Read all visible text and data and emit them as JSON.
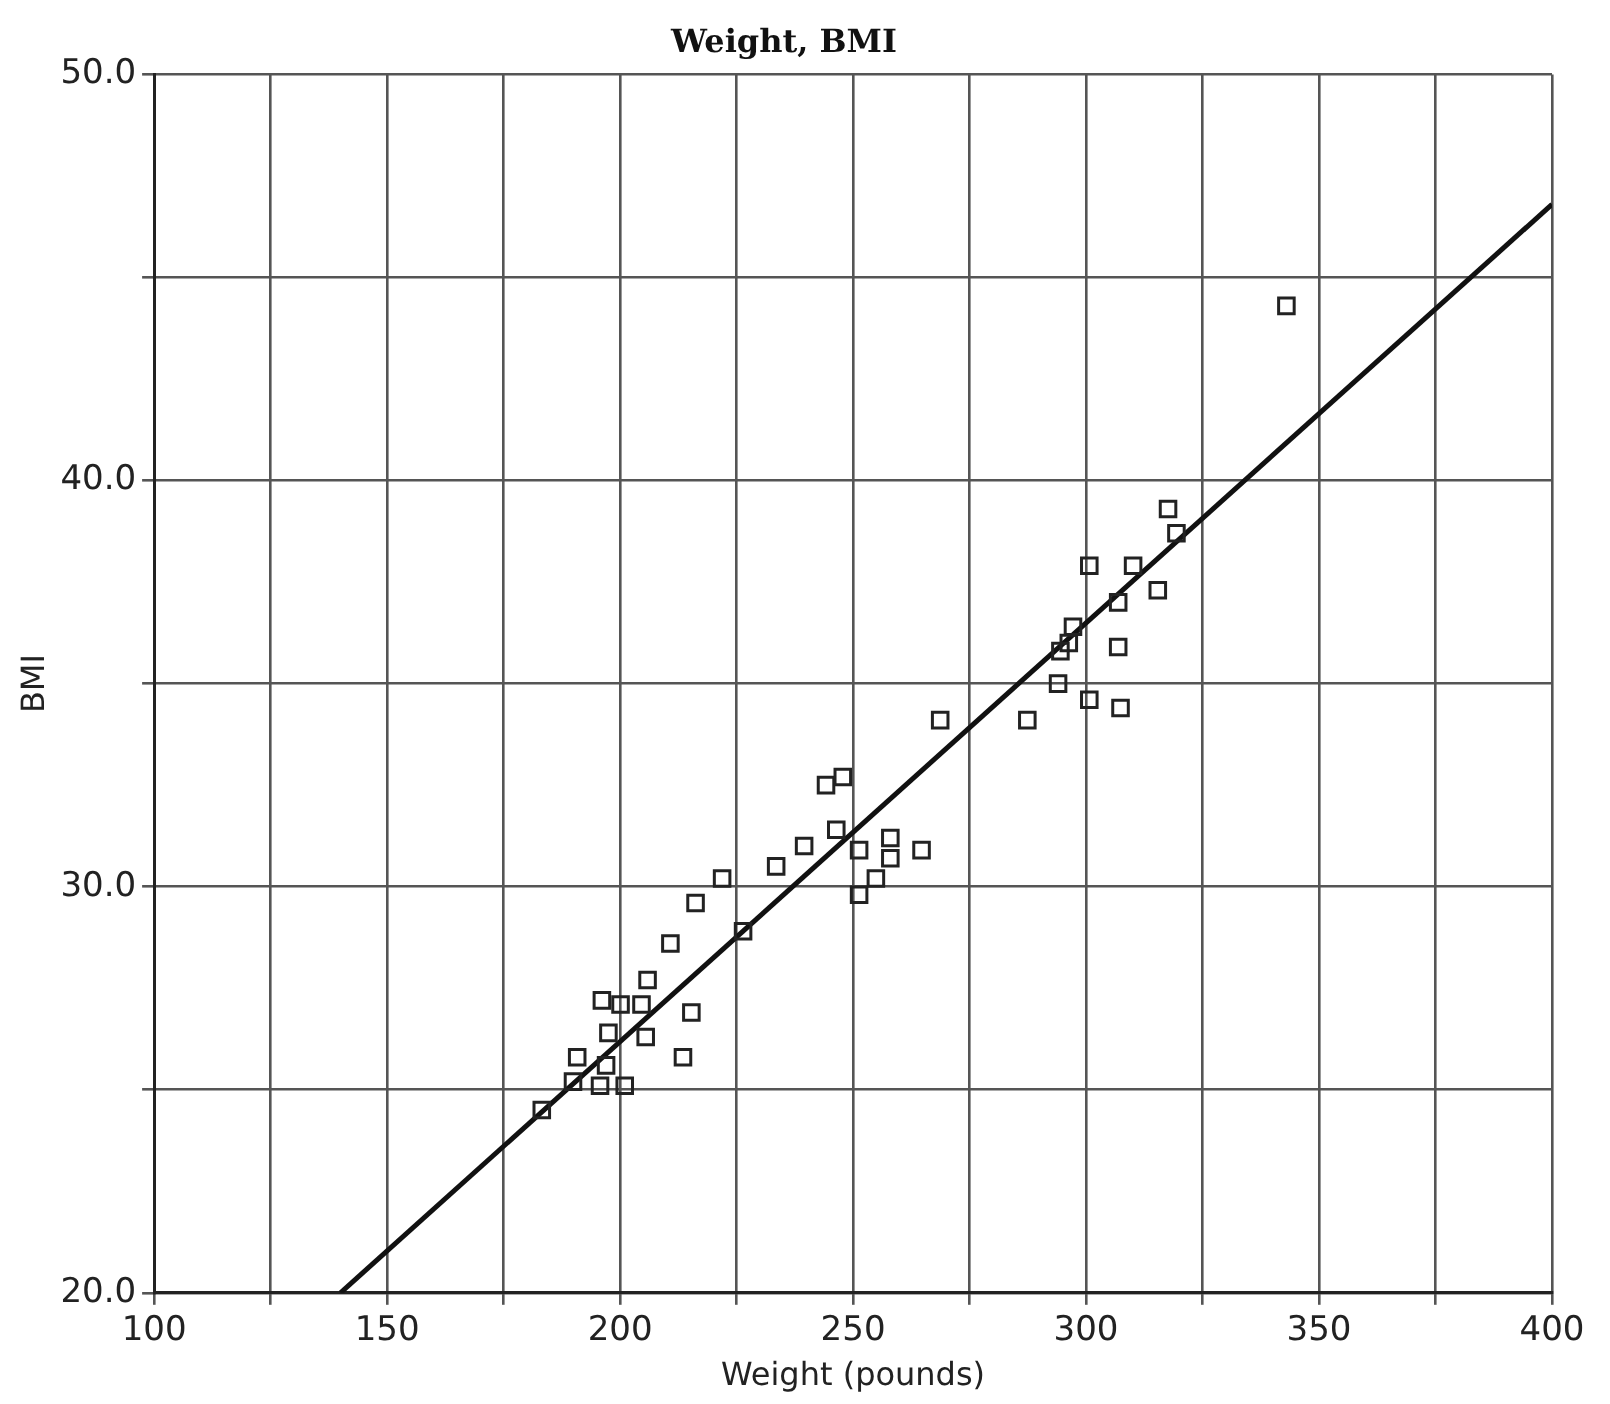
{
  "chart_data": {
    "type": "scatter",
    "title": "Weight, BMI",
    "xlabel": "Weight (pounds)",
    "ylabel": "BMI",
    "xlim": [
      100,
      400
    ],
    "ylim": [
      20,
      50
    ],
    "xticks": [
      100,
      {
        "value": 125,
        "label": null
      },
      150,
      {
        "value": 175,
        "label": null
      },
      200,
      {
        "value": 225,
        "label": null
      },
      250,
      {
        "value": 275,
        "label": null
      },
      300,
      {
        "value": 325,
        "label": null
      },
      350,
      {
        "value": 375,
        "label": null
      },
      400
    ],
    "yticks": [
      {
        "value": 20,
        "label": "20.0"
      },
      {
        "value": 25,
        "label": null
      },
      {
        "value": 30,
        "label": "30.0"
      },
      {
        "value": 35,
        "label": null
      },
      {
        "value": 40,
        "label": "40.0"
      },
      {
        "value": 45,
        "label": null
      },
      {
        "value": 50,
        "label": "50.0"
      }
    ],
    "grid": true,
    "legend": false,
    "marker": "square",
    "series": [
      {
        "color": "#222222",
        "x": [
          183.2,
          189.9,
          190.8,
          195.7,
          201.0,
          197.0,
          197.5,
          196.1,
          200.1,
          204.6,
          205.9,
          205.5,
          215.3,
          213.5,
          210.8,
          216.2,
          221.9,
          226.4,
          233.5,
          239.5,
          246.4,
          244.2,
          247.8,
          251.3,
          251.3,
          254.9,
          258.0,
          258.0,
          264.7,
          268.7,
          287.4,
          294.0,
          300.7,
          307.4,
          294.5,
          296.3,
          297.2,
          306.9,
          306.9,
          315.4,
          310.1,
          300.7,
          319.4,
          317.6,
          343.0
        ],
        "values": [
          24.5,
          25.2,
          25.8,
          25.1,
          25.1,
          25.6,
          26.4,
          27.2,
          27.1,
          27.1,
          27.7,
          26.3,
          26.9,
          25.8,
          28.6,
          29.6,
          30.2,
          28.9,
          30.5,
          31.0,
          31.4,
          32.5,
          32.7,
          30.9,
          29.8,
          30.2,
          31.2,
          30.7,
          30.9,
          34.1,
          34.1,
          35.0,
          34.6,
          34.4,
          35.8,
          36.0,
          36.4,
          35.9,
          37.0,
          37.3,
          37.9,
          37.9,
          38.7,
          39.3,
          44.3
        ]
      },
      {
        "type": "line",
        "color": "#111111",
        "marker": "none",
        "x": [
          140,
          400
        ],
        "values": [
          20,
          46.8
        ]
      }
    ]
  }
}
